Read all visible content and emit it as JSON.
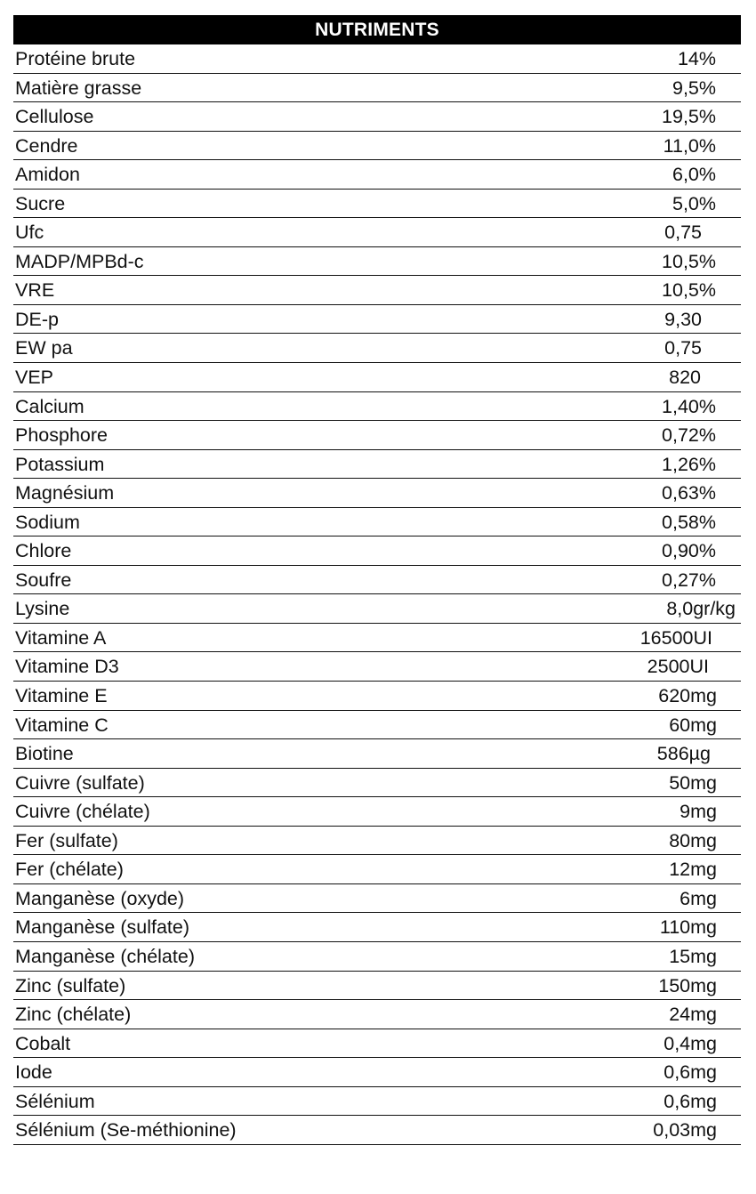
{
  "table": {
    "header": "NUTRIMENTS",
    "rows": [
      {
        "name": "Protéine brute",
        "value": "14%"
      },
      {
        "name": "Matière grasse",
        "value": "9,5%"
      },
      {
        "name": "Cellulose",
        "value": "19,5%"
      },
      {
        "name": "Cendre",
        "value": "11,0%"
      },
      {
        "name": "Amidon",
        "value": "6,0%"
      },
      {
        "name": "Sucre",
        "value": "5,0%"
      },
      {
        "name": "Ufc",
        "value": "0,75"
      },
      {
        "name": "MADP/MPBd-c",
        "value": "10,5%"
      },
      {
        "name": "VRE",
        "value": "10,5%"
      },
      {
        "name": "DE-p",
        "value": "9,30"
      },
      {
        "name": "EW pa",
        "value": "0,75"
      },
      {
        "name": "VEP",
        "value": "820"
      },
      {
        "name": "Calcium",
        "value": "1,40%"
      },
      {
        "name": "Phosphore",
        "value": "0,72%"
      },
      {
        "name": "Potassium",
        "value": "1,26%"
      },
      {
        "name": "Magnésium",
        "value": "0,63%"
      },
      {
        "name": "Sodium",
        "value": "0,58%"
      },
      {
        "name": "Chlore",
        "value": "0,90%"
      },
      {
        "name": "Soufre",
        "value": "0,27%"
      },
      {
        "name": "Lysine",
        "value": "8,0gr/kg"
      },
      {
        "name": "Vitamine A",
        "value": "16500UI"
      },
      {
        "name": "Vitamine D3",
        "value": "2500UI"
      },
      {
        "name": "Vitamine E",
        "value": "620mg"
      },
      {
        "name": "Vitamine C",
        "value": "60mg"
      },
      {
        "name": "Biotine",
        "value": "586µg"
      },
      {
        "name": "Cuivre (sulfate)",
        "value": "50mg"
      },
      {
        "name": "Cuivre (chélate)",
        "value": "9mg"
      },
      {
        "name": "Fer (sulfate)",
        "value": "80mg"
      },
      {
        "name": "Fer (chélate)",
        "value": "12mg"
      },
      {
        "name": "Manganèse (oxyde)",
        "value": "6mg"
      },
      {
        "name": "Manganèse (sulfate)",
        "value": "110mg"
      },
      {
        "name": "Manganèse (chélate)",
        "value": "15mg"
      },
      {
        "name": "Zinc (sulfate)",
        "value": "150mg"
      },
      {
        "name": "Zinc (chélate)",
        "value": "24mg"
      },
      {
        "name": "Cobalt",
        "value": "0,4mg"
      },
      {
        "name": "Iode",
        "value": "0,6mg"
      },
      {
        "name": "Sélénium",
        "value": "0,6mg"
      },
      {
        "name": "Sélénium (Se-méthionine)",
        "value": "0,03mg"
      }
    ]
  }
}
